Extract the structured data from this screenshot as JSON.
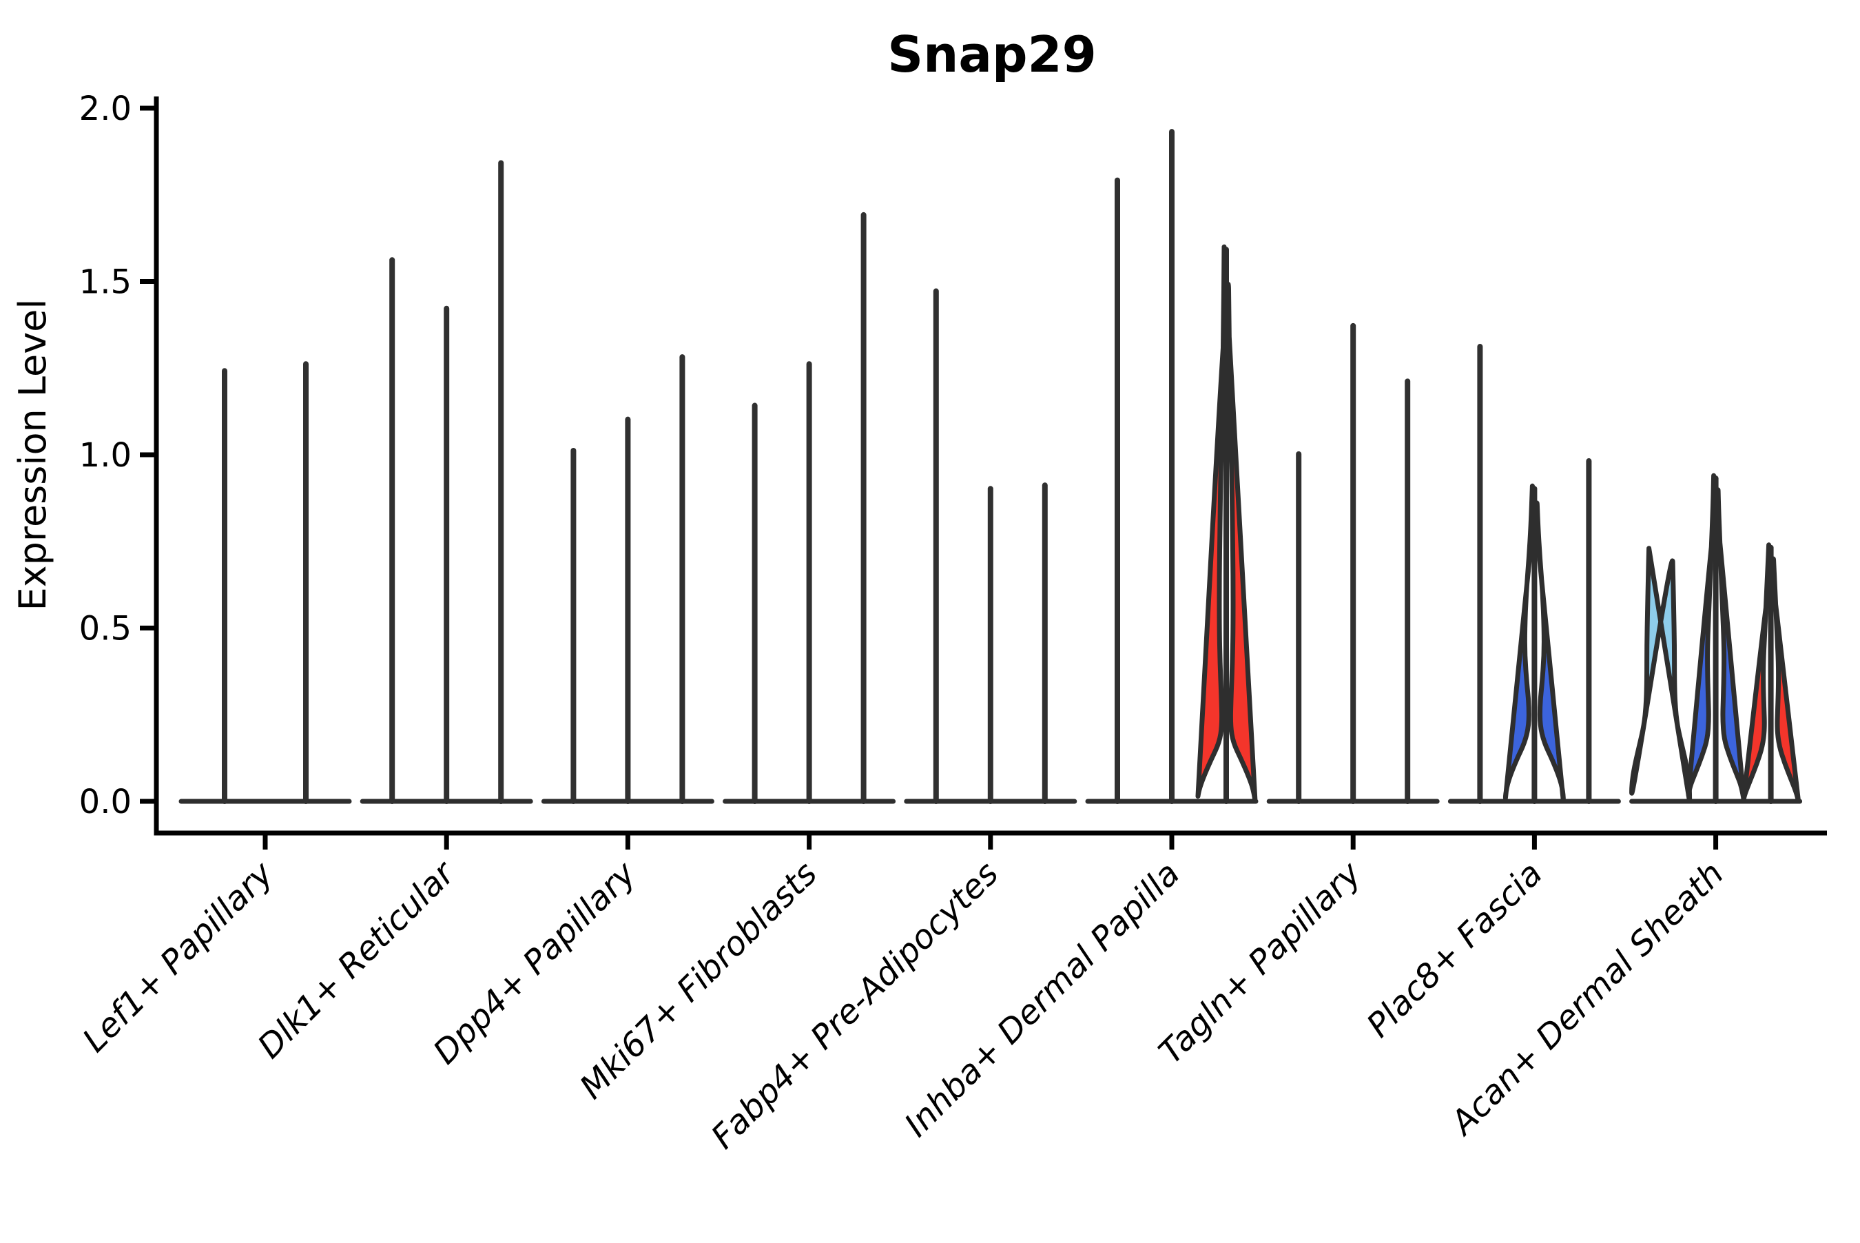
{
  "chart_data": {
    "type": "violin",
    "title": "Snap29",
    "ylabel": "Expression Level",
    "xlabel": "",
    "ylim": [
      0.0,
      2.0
    ],
    "grid": false,
    "legend": "none",
    "ytick_labels": [
      "0.0",
      "0.5",
      "1.0",
      "1.5",
      "2.0"
    ],
    "ytick_values": [
      0.0,
      0.5,
      1.0,
      1.5,
      2.0
    ],
    "categories": [
      "Lef1+ Papillary",
      "Dlk1+ Reticular",
      "Dpp4+ Papillary",
      "Mki67+ Fibroblasts",
      "Fabp4+ Pre-Adipocytes",
      "Inhba+ Dermal Papilla",
      "Tagln+ Papillary",
      "Plac8+ Fascia",
      "Acan+ Dermal Sheath"
    ],
    "colors": {
      "needle": "#303030",
      "outline": "#2e2e2e",
      "axis": "#000000",
      "red": "#f4352b",
      "blue": "#3c64dc",
      "lightblue": "#8ecdeb"
    },
    "groups": [
      {
        "label": "Lef1+ Papillary",
        "violins": [
          {
            "dx": -59,
            "max": 1.25,
            "color": "needle"
          },
          {
            "dx": 59,
            "max": 1.27,
            "color": "needle"
          }
        ]
      },
      {
        "label": "Dlk1+ Reticular",
        "violins": [
          {
            "dx": -79,
            "max": 1.57,
            "color": "needle"
          },
          {
            "dx": 0,
            "max": 1.43,
            "color": "needle"
          },
          {
            "dx": 79,
            "max": 1.85,
            "color": "needle"
          }
        ]
      },
      {
        "label": "Dpp4+ Papillary",
        "violins": [
          {
            "dx": -79,
            "max": 1.02,
            "color": "needle"
          },
          {
            "dx": 0,
            "max": 1.11,
            "color": "needle"
          },
          {
            "dx": 79,
            "max": 1.29,
            "color": "needle"
          }
        ]
      },
      {
        "label": "Mki67+ Fibroblasts",
        "violins": [
          {
            "dx": -79,
            "max": 1.15,
            "color": "needle"
          },
          {
            "dx": 0,
            "max": 1.27,
            "color": "needle"
          },
          {
            "dx": 79,
            "max": 1.7,
            "color": "needle"
          }
        ]
      },
      {
        "label": "Fabp4+ Pre-Adipocytes",
        "violins": [
          {
            "dx": -79,
            "max": 1.48,
            "color": "needle"
          },
          {
            "dx": 0,
            "max": 0.91,
            "color": "needle"
          },
          {
            "dx": 79,
            "max": 0.92,
            "color": "needle"
          }
        ]
      },
      {
        "label": "Inhba+ Dermal Papilla",
        "violins": [
          {
            "dx": -79,
            "max": 1.8,
            "color": "needle"
          },
          {
            "dx": 0,
            "max": 1.94,
            "color": "needle"
          },
          {
            "dx": 79,
            "max": 1.6,
            "color": "red",
            "profile": [
              [
                1.6,
                3
              ],
              [
                1.35,
                4
              ],
              [
                1.1,
                6
              ],
              [
                0.95,
                8
              ],
              [
                0.8,
                9
              ],
              [
                0.65,
                10
              ],
              [
                0.5,
                10
              ],
              [
                0.4,
                9
              ],
              [
                0.3,
                7
              ],
              [
                0.22,
                6
              ],
              [
                0.17,
                10
              ],
              [
                0.12,
                22
              ],
              [
                0.07,
                33
              ],
              [
                0.03,
                40
              ],
              [
                0,
                42
              ]
            ]
          }
        ]
      },
      {
        "label": "Tagln+ Papillary",
        "violins": [
          {
            "dx": -79,
            "max": 1.01,
            "color": "needle"
          },
          {
            "dx": 0,
            "max": 1.38,
            "color": "needle"
          },
          {
            "dx": 79,
            "max": 1.22,
            "color": "needle"
          }
        ]
      },
      {
        "label": "Plac8+ Fascia",
        "violins": [
          {
            "dx": -79,
            "max": 1.32,
            "color": "needle"
          },
          {
            "dx": 0,
            "max": 0.91,
            "color": "blue",
            "profile": [
              [
                0.91,
                3
              ],
              [
                0.8,
                5
              ],
              [
                0.7,
                8
              ],
              [
                0.6,
                12
              ],
              [
                0.5,
                14
              ],
              [
                0.42,
                14
              ],
              [
                0.34,
                11
              ],
              [
                0.28,
                8
              ],
              [
                0.22,
                8
              ],
              [
                0.17,
                14
              ],
              [
                0.12,
                26
              ],
              [
                0.06,
                38
              ],
              [
                0.02,
                42
              ],
              [
                0,
                42
              ]
            ]
          },
          {
            "dx": 79,
            "max": 0.99,
            "color": "needle"
          }
        ]
      },
      {
        "label": "Acan+ Dermal Sheath",
        "violins": [
          {
            "dx": -80,
            "max": 0.73,
            "color": "lightblue",
            "profile": [
              [
                0.73,
                17
              ],
              [
                0.65,
                18
              ],
              [
                0.55,
                19
              ],
              [
                0.45,
                20
              ],
              [
                0.35,
                20
              ],
              [
                0.28,
                21
              ],
              [
                0.22,
                24
              ],
              [
                0.16,
                31
              ],
              [
                0.1,
                38
              ],
              [
                0.05,
                42
              ],
              [
                0,
                42
              ]
            ]
          },
          {
            "dx": 0,
            "max": 0.94,
            "color": "blue",
            "profile": [
              [
                0.94,
                3
              ],
              [
                0.85,
                4
              ],
              [
                0.75,
                6
              ],
              [
                0.65,
                8
              ],
              [
                0.55,
                10
              ],
              [
                0.45,
                12
              ],
              [
                0.38,
                12
              ],
              [
                0.3,
                11
              ],
              [
                0.24,
                10
              ],
              [
                0.18,
                12
              ],
              [
                0.13,
                20
              ],
              [
                0.08,
                30
              ],
              [
                0.04,
                38
              ],
              [
                0,
                41
              ]
            ]
          },
          {
            "dx": 80,
            "max": 0.74,
            "color": "red",
            "profile": [
              [
                0.74,
                3
              ],
              [
                0.65,
                5
              ],
              [
                0.57,
                7
              ],
              [
                0.48,
                9
              ],
              [
                0.4,
                11
              ],
              [
                0.33,
                11
              ],
              [
                0.27,
                10
              ],
              [
                0.21,
                9
              ],
              [
                0.16,
                12
              ],
              [
                0.11,
                20
              ],
              [
                0.06,
                30
              ],
              [
                0.02,
                38
              ],
              [
                0,
                40
              ]
            ]
          }
        ]
      }
    ]
  }
}
